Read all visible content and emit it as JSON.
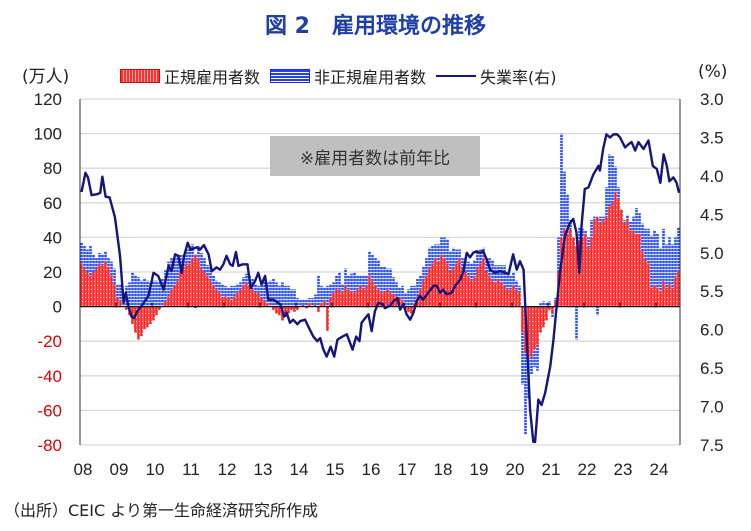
{
  "title": "図 2　雇用環境の推移",
  "note": "※雇用者数は前年比",
  "source": "（出所）CEIC より第一生命経済研究所作成",
  "left_unit": "(万人)",
  "right_unit": "(%)",
  "colors": {
    "regular": "#ff2020",
    "non_regular": "#2244ee",
    "rate": "#15157a",
    "title": "#1f3fa8",
    "note_bg": "#bfbfbf"
  },
  "legend": [
    {
      "label": "正規雇用者数",
      "icon": "red-dotted-bar-swatch"
    },
    {
      "label": "非正規雇用者数",
      "icon": "blue-striped-bar-swatch"
    },
    {
      "label": "失業率(右)",
      "icon": "navy-line-swatch"
    }
  ],
  "chart_data": {
    "type": "bar+line",
    "x_tick_labels": [
      "08",
      "09",
      "10",
      "11",
      "12",
      "13",
      "14",
      "15",
      "16",
      "17",
      "18",
      "19",
      "20",
      "21",
      "22",
      "23",
      "24"
    ],
    "y_left": {
      "lim": [
        -80,
        120
      ],
      "ticks": [
        "120",
        "100",
        "80",
        "60",
        "40",
        "20",
        "0",
        "-20",
        "-40",
        "-60",
        "-80"
      ],
      "unit": "(万人)"
    },
    "y_right": {
      "lim": [
        3.0,
        7.5
      ],
      "inverted": true,
      "ticks": [
        "3.0",
        "3.5",
        "4.0",
        "4.5",
        "5.0",
        "5.5",
        "6.0",
        "6.5",
        "7.0",
        "7.5"
      ],
      "unit": "(%)"
    },
    "grid": true,
    "legend_position": "top",
    "bar_series_start": "2008-01",
    "bar_frequency": "monthly",
    "stacked": true,
    "series": [
      {
        "name": "正規雇用者数",
        "kind": "bar",
        "values": [
          25,
          22,
          20,
          18,
          20,
          22,
          25,
          24,
          26,
          23,
          18,
          13,
          5,
          3,
          0,
          -2,
          -5,
          -10,
          -15,
          -19,
          -17,
          -13,
          -12,
          -10,
          -8,
          -5,
          -2,
          0,
          3,
          6,
          10,
          12,
          15,
          20,
          22,
          25,
          25,
          28,
          30,
          27,
          22,
          20,
          18,
          15,
          12,
          10,
          8,
          5,
          6,
          5,
          4,
          6,
          8,
          10,
          12,
          14,
          12,
          10,
          8,
          8,
          5,
          3,
          2,
          0,
          -2,
          -4,
          -5,
          -8,
          -6,
          -4,
          -2,
          -3,
          -2,
          0,
          1,
          -1,
          2,
          0,
          1,
          -3,
          2,
          3,
          -14,
          5,
          8,
          10,
          10,
          8,
          12,
          10,
          9,
          8,
          10,
          12,
          10,
          12,
          18,
          15,
          12,
          10,
          8,
          9,
          10,
          8,
          7,
          6,
          5,
          4,
          -2,
          -3,
          -4,
          2,
          6,
          10,
          15,
          18,
          22,
          25,
          28,
          26,
          30,
          28,
          25,
          20,
          22,
          25,
          28,
          22,
          20,
          18,
          15,
          17,
          22,
          25,
          28,
          20,
          18,
          15,
          14,
          16,
          14,
          12,
          10,
          10,
          12,
          10,
          8,
          -15,
          -27,
          -30,
          -29,
          -25,
          -22,
          -15,
          -12,
          -8,
          -2,
          -4,
          3,
          20,
          40,
          45,
          42,
          45,
          40,
          35,
          38,
          40,
          42,
          34,
          40,
          50,
          52,
          48,
          50,
          52,
          58,
          60,
          66,
          62,
          56,
          48,
          50,
          44,
          44,
          42,
          42,
          32,
          27,
          25,
          11,
          12,
          11,
          9,
          15,
          11,
          13,
          11,
          17,
          21
        ]
      },
      {
        "name": "非正規雇用者数",
        "kind": "bar",
        "values": [
          12,
          13,
          13,
          17,
          10,
          6,
          6,
          6,
          6,
          5,
          8,
          9,
          8,
          10,
          8,
          12,
          14,
          20,
          18,
          17,
          15,
          16,
          15,
          14,
          15,
          15,
          14,
          16,
          18,
          20,
          18,
          16,
          14,
          10,
          8,
          8,
          10,
          8,
          -1,
          8,
          9,
          8,
          6,
          8,
          6,
          5,
          6,
          8,
          6,
          6,
          8,
          6,
          5,
          4,
          5,
          5,
          6,
          6,
          5,
          4,
          10,
          12,
          12,
          15,
          16,
          14,
          12,
          14,
          12,
          12,
          10,
          10,
          5,
          4,
          3,
          4,
          3,
          5,
          6,
          18,
          10,
          8,
          12,
          8,
          6,
          8,
          10,
          5,
          10,
          8,
          10,
          12,
          8,
          6,
          8,
          6,
          14,
          15,
          16,
          17,
          15,
          14,
          12,
          14,
          10,
          8,
          6,
          8,
          8,
          10,
          12,
          10,
          10,
          8,
          8,
          10,
          12,
          10,
          8,
          10,
          10,
          12,
          14,
          12,
          12,
          8,
          5,
          6,
          8,
          8,
          10,
          10,
          10,
          8,
          6,
          8,
          10,
          12,
          10,
          8,
          10,
          12,
          8,
          8,
          8,
          5,
          4,
          -30,
          -47,
          -23,
          -10,
          -10,
          -15,
          2,
          3,
          2,
          3,
          -2,
          2,
          20,
          60,
          33,
          23,
          5,
          0,
          -19,
          8,
          5,
          2,
          6,
          10,
          2,
          -5,
          4,
          2,
          17,
          30,
          27,
          15,
          7,
          0,
          2,
          3,
          5,
          8,
          15,
          12,
          16,
          18,
          20,
          30,
          32,
          31,
          25,
          30,
          25,
          27,
          25,
          23,
          25
        ]
      },
      {
        "name": "失業率(右)",
        "kind": "line",
        "axis": "right",
        "x": [
          2008.0,
          2008.11,
          2008.18,
          2008.28,
          2008.42,
          2008.52,
          2008.58,
          2008.67,
          2008.78,
          2008.93,
          2009.07,
          2009.17,
          2009.23,
          2009.3,
          2009.39,
          2009.46,
          2009.55,
          2009.67,
          2009.86,
          2010.0,
          2010.13,
          2010.28,
          2010.42,
          2010.5,
          2010.6,
          2010.69,
          2010.78,
          2010.85,
          2010.95,
          2011.03,
          2011.2,
          2011.29,
          2011.4,
          2011.53,
          2011.62,
          2011.75,
          2011.85,
          2011.94,
          2012.03,
          2012.13,
          2012.2,
          2012.29,
          2012.36,
          2012.48,
          2012.61,
          2012.7,
          2012.82,
          2012.91,
          2013.0,
          2013.1,
          2013.19,
          2013.33,
          2013.52,
          2013.63,
          2013.7,
          2013.79,
          2013.88,
          2014.0,
          2014.07,
          2014.21,
          2014.3,
          2014.44,
          2014.55,
          2014.63,
          2014.72,
          2014.81,
          2014.92,
          2015.02,
          2015.11,
          2015.25,
          2015.37,
          2015.53,
          2015.63,
          2015.72,
          2015.78,
          2015.88,
          2015.97,
          2016.06,
          2016.15,
          2016.25,
          2016.37,
          2016.43,
          2016.57,
          2016.66,
          2016.78,
          2016.85,
          2016.94,
          2017.03,
          2017.13,
          2017.22,
          2017.31,
          2017.4,
          2017.49,
          2017.63,
          2017.78,
          2017.87,
          2017.96,
          2018.05,
          2018.14,
          2018.28,
          2018.38,
          2018.52,
          2018.61,
          2018.7,
          2018.79,
          2018.88,
          2018.98,
          2019.07,
          2019.16,
          2019.26,
          2019.35,
          2019.48,
          2019.63,
          2019.77,
          2019.86,
          2019.99,
          2020.09,
          2020.18,
          2020.28,
          2020.37,
          2020.46,
          2020.55,
          2020.6,
          2020.69,
          2020.78,
          2020.88,
          2021.02,
          2021.11,
          2021.2,
          2021.29,
          2021.43,
          2021.57,
          2021.66,
          2021.75,
          2021.83,
          2021.89,
          2021.98,
          2022.08,
          2022.22,
          2022.36,
          2022.4,
          2022.49,
          2022.58,
          2022.68,
          2022.78,
          2022.88,
          2022.96,
          2023.1,
          2023.19,
          2023.28,
          2023.38,
          2023.47,
          2023.61,
          2023.75,
          2023.87,
          2023.98,
          2024.08,
          2024.17,
          2024.26,
          2024.33,
          2024.44,
          2024.53,
          2024.6
        ],
        "values": [
          4.21,
          3.96,
          4.02,
          4.25,
          4.24,
          4.22,
          4.01,
          4.27,
          4.28,
          4.54,
          5.04,
          5.65,
          5.52,
          5.69,
          5.83,
          5.85,
          5.76,
          5.69,
          5.56,
          5.26,
          5.3,
          5.48,
          5.17,
          5.24,
          5.02,
          5.04,
          5.26,
          5.04,
          4.87,
          4.96,
          4.93,
          4.96,
          4.9,
          5.02,
          5.24,
          5.19,
          5.22,
          5.15,
          5.04,
          5.15,
          5.17,
          4.99,
          5.17,
          5.15,
          5.15,
          5.46,
          5.37,
          5.26,
          5.41,
          5.3,
          5.61,
          5.61,
          5.67,
          5.83,
          5.78,
          5.91,
          5.87,
          5.93,
          5.89,
          5.87,
          5.96,
          6.09,
          6.15,
          6.11,
          6.26,
          6.35,
          6.22,
          6.35,
          6.13,
          6.09,
          6.06,
          6.26,
          6.09,
          6.15,
          5.91,
          5.85,
          5.8,
          6.02,
          5.76,
          5.65,
          5.67,
          5.72,
          5.69,
          5.63,
          5.59,
          5.74,
          5.67,
          5.8,
          5.87,
          5.78,
          5.63,
          5.56,
          5.61,
          5.52,
          5.43,
          5.43,
          5.52,
          5.48,
          5.54,
          5.52,
          5.43,
          5.35,
          5.24,
          5.0,
          5.06,
          5.0,
          4.98,
          5.0,
          4.98,
          5.09,
          5.22,
          5.26,
          5.24,
          5.26,
          5.28,
          5.02,
          5.22,
          5.11,
          5.22,
          6.13,
          7.04,
          7.46,
          7.46,
          6.91,
          6.98,
          6.82,
          6.48,
          6.13,
          5.69,
          5.26,
          4.78,
          4.61,
          4.56,
          4.74,
          5.26,
          4.65,
          4.17,
          4.15,
          3.98,
          3.87,
          3.93,
          3.65,
          3.46,
          3.5,
          3.46,
          3.46,
          3.5,
          3.63,
          3.59,
          3.56,
          3.67,
          3.56,
          3.65,
          3.54,
          3.87,
          3.91,
          4.09,
          3.72,
          3.87,
          4.07,
          4.02,
          4.09,
          4.22
        ]
      }
    ]
  }
}
